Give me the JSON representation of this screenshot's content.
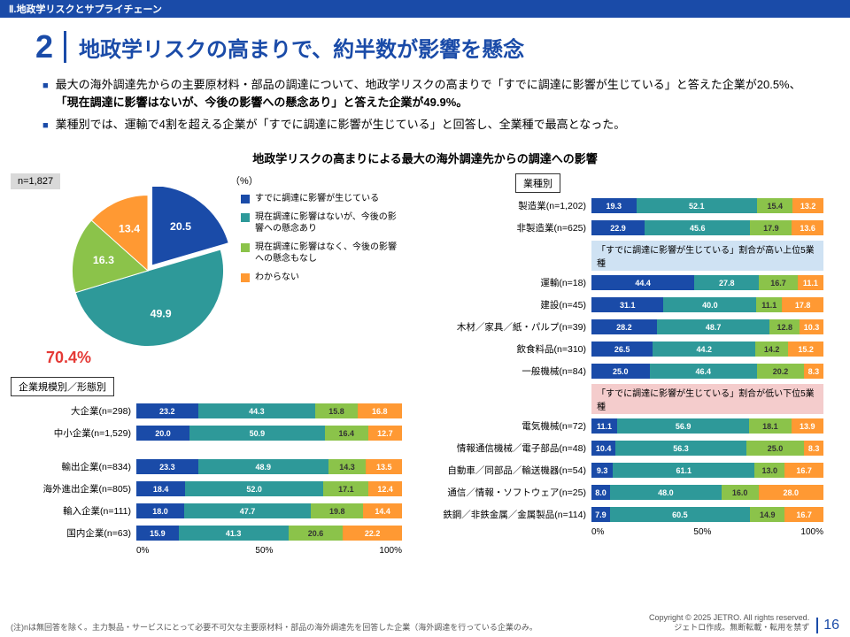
{
  "header_band": "Ⅱ.地政学リスクとサプライチェーン",
  "title_num": "2",
  "title_text": "地政学リスクの高まりで、約半数が影響を懸念",
  "bullets": [
    {
      "pre": "最大の海外調達先からの主要原材料・部品の調達について、地政学リスクの高まりで「すでに調達に影響が生じている」と答えた企業が20.5%、",
      "bold": "「現在調達に影響はないが、今後の影響への懸念あり」と答えた企業が49.9%。"
    },
    {
      "pre": "業種別では、運輸で4割を超える企業が「すでに調達に影響が生じている」と回答し、全業種で最高となった。",
      "bold": ""
    }
  ],
  "chart_title": "地政学リスクの高まりによる最大の海外調達先からの調達への影響",
  "n_label": "n=1,827",
  "pct_label": "（%）",
  "pie": {
    "values": [
      20.5,
      49.9,
      16.3,
      13.4
    ],
    "colors": [
      "#1a4ba8",
      "#2e9999",
      "#8bc34a",
      "#ff9933"
    ],
    "highlight": "70.4%"
  },
  "legend": [
    {
      "color": "#1a4ba8",
      "text": "すでに調達に影響が生じている"
    },
    {
      "color": "#2e9999",
      "text": "現在調達に影響はないが、今後の影響への懸念あり"
    },
    {
      "color": "#8bc34a",
      "text": "現在調達に影響はなく、今後の影響への懸念もなし"
    },
    {
      "color": "#ff9933",
      "text": "わからない"
    }
  ],
  "left_section_label": "企業規模別／形態別",
  "left_bars": [
    {
      "label": "大企業(n=298)",
      "v": [
        23.2,
        44.3,
        15.8,
        16.8
      ]
    },
    {
      "label": "中小企業(n=1,529)",
      "v": [
        20.0,
        50.9,
        16.4,
        12.7
      ]
    },
    {
      "label": "",
      "v": null
    },
    {
      "label": "輸出企業(n=834)",
      "v": [
        23.3,
        48.9,
        14.3,
        13.5
      ]
    },
    {
      "label": "海外進出企業(n=805)",
      "v": [
        18.4,
        52.0,
        17.1,
        12.4
      ]
    },
    {
      "label": "輸入企業(n=111)",
      "v": [
        18.0,
        47.7,
        19.8,
        14.4
      ]
    },
    {
      "label": "国内企業(n=63)",
      "v": [
        15.9,
        41.3,
        20.6,
        22.2
      ]
    }
  ],
  "right_section_label": "業種別",
  "right_bars_top": [
    {
      "label": "製造業(n=1,202)",
      "v": [
        19.3,
        52.1,
        15.4,
        13.2
      ]
    },
    {
      "label": "非製造業(n=625)",
      "v": [
        22.9,
        45.6,
        17.9,
        13.6
      ]
    }
  ],
  "band_high": "「すでに調達に影響が生じている」割合が高い上位5業種",
  "right_bars_high": [
    {
      "label": "運輸(n=18)",
      "v": [
        44.4,
        27.8,
        16.7,
        11.1
      ]
    },
    {
      "label": "建設(n=45)",
      "v": [
        31.1,
        40.0,
        11.1,
        17.8
      ]
    },
    {
      "label": "木材／家具／紙・パルプ(n=39)",
      "v": [
        28.2,
        48.7,
        12.8,
        10.3
      ]
    },
    {
      "label": "飲食料品(n=310)",
      "v": [
        26.5,
        44.2,
        14.2,
        15.2
      ]
    },
    {
      "label": "一般機械(n=84)",
      "v": [
        25.0,
        46.4,
        20.2,
        8.3
      ]
    }
  ],
  "band_low": "「すでに調達に影響が生じている」割合が低い下位5業種",
  "right_bars_low": [
    {
      "label": "電気機械(n=72)",
      "v": [
        11.1,
        56.9,
        18.1,
        13.9
      ]
    },
    {
      "label": "情報通信機械／電子部品(n=48)",
      "v": [
        10.4,
        56.3,
        25.0,
        8.3
      ]
    },
    {
      "label": "自動車／同部品／輸送機器(n=54)",
      "v": [
        9.3,
        61.1,
        13.0,
        16.7
      ]
    },
    {
      "label": "通信／情報・ソフトウェア(n=25)",
      "v": [
        8.0,
        48.0,
        16.0,
        28.0
      ]
    },
    {
      "label": "鉄鋼／非鉄金属／金属製品(n=114)",
      "v": [
        7.9,
        60.5,
        14.9,
        16.7
      ]
    }
  ],
  "axis": [
    "0%",
    "50%",
    "100%"
  ],
  "footnote": "(注)nは無回答を除く。主力製品・サービスにとって必要不可欠な主要原材料・部品の海外調達先を回答した企業（海外調達を行っている企業のみ。",
  "copyright1": "Copyright © 2025 JETRO. All rights reserved.",
  "copyright2": "ジェトロ作成。無断転載・転用を禁ず",
  "page": "16",
  "colors": [
    "#1a4ba8",
    "#2e9999",
    "#8bc34a",
    "#ff9933"
  ]
}
